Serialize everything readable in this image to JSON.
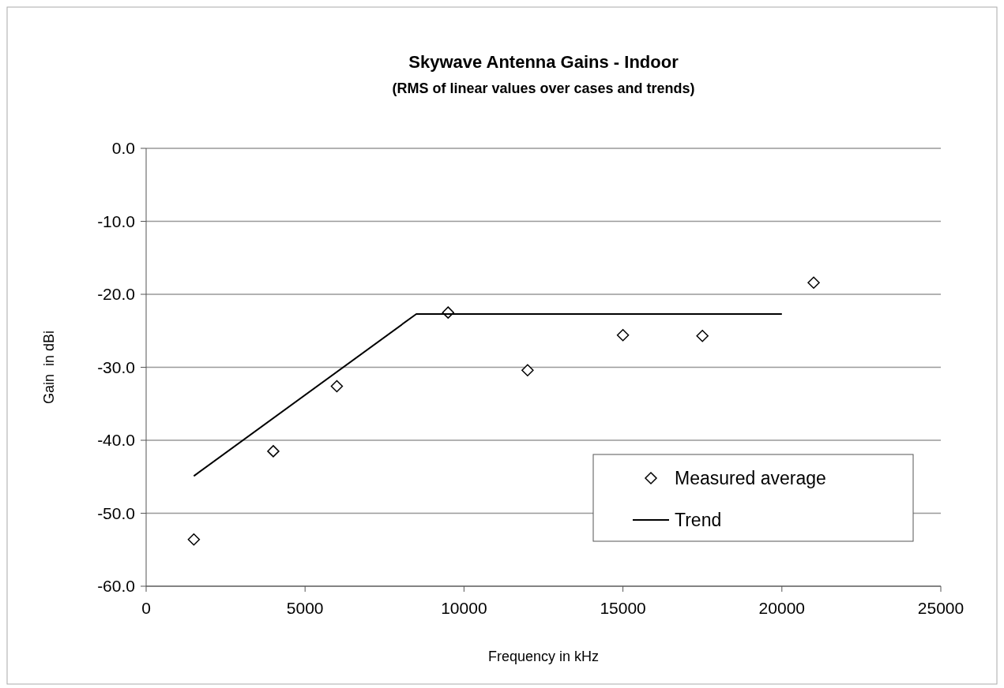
{
  "chart_data": {
    "type": "scatter",
    "title": "Skywave Antenna Gains - Indoor",
    "subtitle": "(RMS of linear values over cases and trends)",
    "xlabel": "Frequency in kHz",
    "ylabel": "Gain  in dBi",
    "xlim": [
      0,
      25000
    ],
    "xticks": [
      0,
      5000,
      10000,
      15000,
      20000,
      25000
    ],
    "ylim": [
      -60,
      0
    ],
    "yticks": [
      {
        "value": 0,
        "label": "0.0"
      },
      {
        "value": -10,
        "label": "-10.0"
      },
      {
        "value": -20,
        "label": "-20.0"
      },
      {
        "value": -30,
        "label": "-30.0"
      },
      {
        "value": -40,
        "label": "-40.0"
      },
      {
        "value": -50,
        "label": "-50.0"
      },
      {
        "value": -60,
        "label": "-60.0"
      }
    ],
    "grid": "y",
    "legend": "bottom right",
    "series": [
      {
        "name": "Measured average",
        "marker": "diamond",
        "color": "#000000",
        "x": [
          1500,
          4000,
          6000,
          9500,
          12000,
          15000,
          17500,
          21000
        ],
        "values": [
          -53.6,
          -41.5,
          -32.6,
          -22.5,
          -30.4,
          -25.6,
          -25.7,
          -18.4
        ]
      },
      {
        "name": "Trend",
        "type": "line",
        "marker": "none",
        "line_style": "solid",
        "color": "#000000",
        "x": [
          1500,
          8500,
          20000
        ],
        "values": [
          -44.9,
          -22.7,
          -22.7
        ]
      }
    ]
  }
}
